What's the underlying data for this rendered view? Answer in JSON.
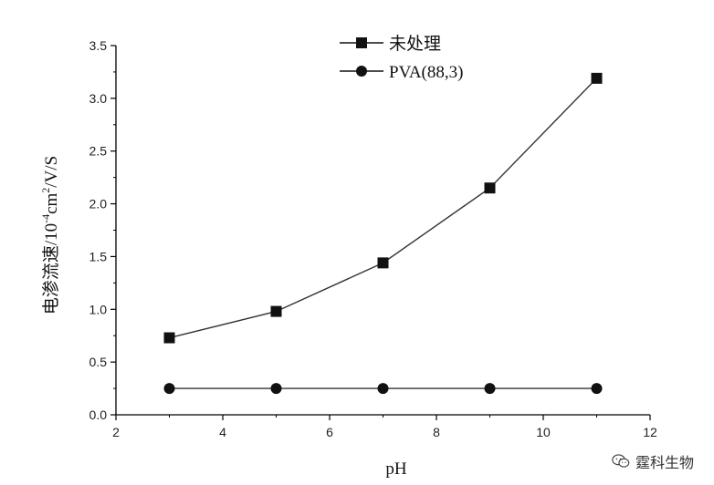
{
  "chart_data": {
    "type": "line",
    "xlabel": "pH",
    "ylabel_main": "电渗流速/10",
    "ylabel_sup1": "-4",
    "ylabel_mid": "cm",
    "ylabel_sup2": "2",
    "ylabel_end": "/V/S",
    "xlim": [
      2,
      12
    ],
    "ylim": [
      0.0,
      3.5
    ],
    "x_ticks": [
      2,
      4,
      6,
      8,
      10,
      12
    ],
    "y_ticks": [
      0.0,
      0.5,
      1.0,
      1.5,
      2.0,
      2.5,
      3.0,
      3.5
    ],
    "x_tick_labels": [
      "2",
      "4",
      "6",
      "8",
      "10",
      "12"
    ],
    "y_tick_labels": [
      "0.0",
      "0.5",
      "1.0",
      "1.5",
      "2.0",
      "2.5",
      "3.0",
      "3.5"
    ],
    "grid": false,
    "legend_position": "top-center",
    "series": [
      {
        "name": "未处理",
        "marker": "square",
        "color": "#111111",
        "x": [
          3,
          5,
          7,
          9,
          11
        ],
        "y": [
          0.73,
          0.98,
          1.44,
          2.15,
          3.19
        ]
      },
      {
        "name": "PVA(88,3)",
        "marker": "circle",
        "color": "#111111",
        "x": [
          3,
          5,
          7,
          9,
          11
        ],
        "y": [
          0.25,
          0.25,
          0.25,
          0.25,
          0.25
        ]
      }
    ]
  },
  "watermark": {
    "text": "霆科生物",
    "icon": "wechat-icon"
  }
}
